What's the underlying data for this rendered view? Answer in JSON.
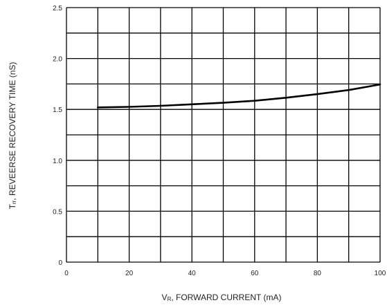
{
  "chart_data": {
    "type": "line",
    "title": "",
    "xlabel_sym": "V",
    "xlabel_sub": "R",
    "xlabel_text": ", FORWARD CURRENT (mA)",
    "ylabel_sym": "T",
    "ylabel_sub": "rr",
    "ylabel_text": ", REVEERSE RECOVERY TIME (nS)",
    "xlim": [
      0,
      100
    ],
    "ylim": [
      0,
      2.5
    ],
    "x_ticks": [
      0,
      20,
      40,
      60,
      80,
      100
    ],
    "x_tick_labels": [
      "0",
      "20",
      "40",
      "60",
      "80",
      "100"
    ],
    "y_ticks": [
      0,
      0.5,
      1.0,
      1.5,
      2.0,
      2.5
    ],
    "y_tick_labels": [
      "0",
      "0.5",
      "1.0",
      "1.5",
      "2.0",
      "2.5"
    ],
    "grid": true,
    "grid_x_divisions": 10,
    "grid_y_divisions": 10,
    "line_color": "#000000",
    "grid_color": "#000000",
    "series": [
      {
        "x": [
          10,
          20,
          30,
          40,
          50,
          60,
          70,
          80,
          90,
          100
        ],
        "values": [
          1.52,
          1.525,
          1.535,
          1.55,
          1.565,
          1.585,
          1.615,
          1.65,
          1.69,
          1.745
        ]
      }
    ]
  }
}
